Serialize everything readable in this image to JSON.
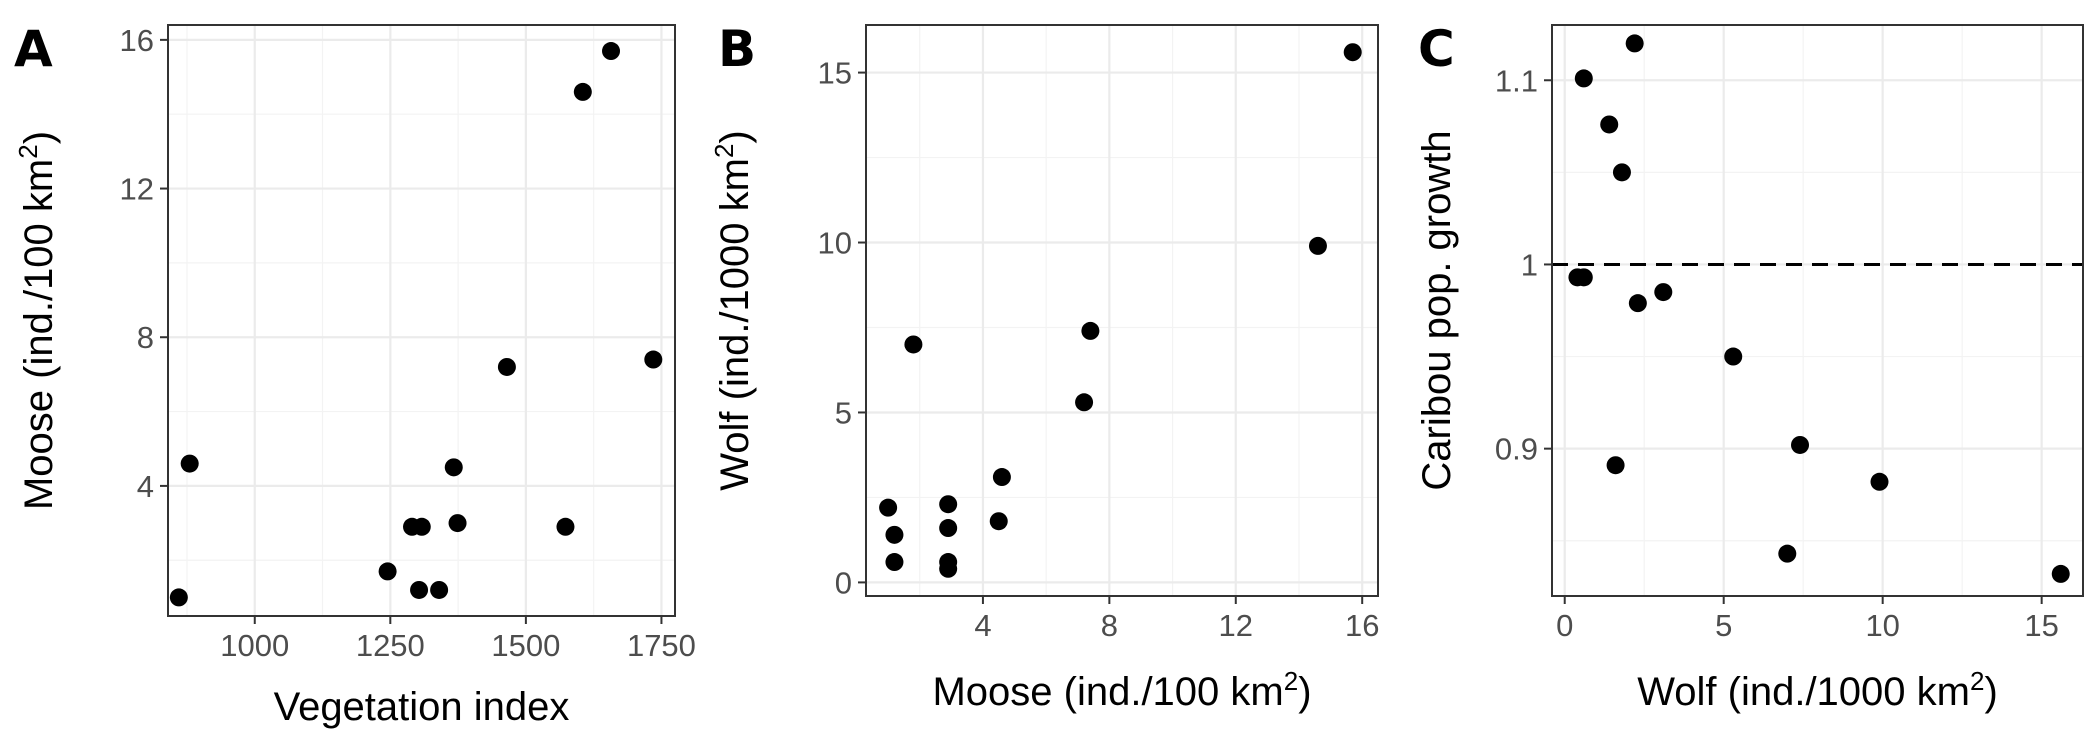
{
  "chart_data": [
    {
      "type": "scatter",
      "panel": "A",
      "xlabel": "Vegetation index",
      "ylabel": "Moose (ind./100 km²)",
      "xlim": [
        840,
        1775
      ],
      "ylim": [
        0.5,
        16.4
      ],
      "xticks": [
        1000,
        1250,
        1500,
        1750
      ],
      "yticks": [
        4,
        8,
        12,
        16
      ],
      "grid": true,
      "points": [
        {
          "x": 860,
          "y": 1.0
        },
        {
          "x": 880,
          "y": 4.6
        },
        {
          "x": 1245,
          "y": 1.7
        },
        {
          "x": 1290,
          "y": 2.9
        },
        {
          "x": 1303,
          "y": 1.2
        },
        {
          "x": 1308,
          "y": 2.9
        },
        {
          "x": 1340,
          "y": 1.2
        },
        {
          "x": 1367,
          "y": 4.5
        },
        {
          "x": 1374,
          "y": 3.0
        },
        {
          "x": 1465,
          "y": 7.2
        },
        {
          "x": 1573,
          "y": 2.9
        },
        {
          "x": 1605,
          "y": 14.6
        },
        {
          "x": 1657,
          "y": 15.7
        },
        {
          "x": 1735,
          "y": 7.4
        }
      ]
    },
    {
      "type": "scatter",
      "panel": "B",
      "xlabel": "Moose (ind./100 km²)",
      "ylabel": "Wolf (ind./1000 km²)",
      "xlim": [
        0.3,
        16.5
      ],
      "ylim": [
        -0.4,
        16.4
      ],
      "xticks": [
        4,
        8,
        12,
        16
      ],
      "yticks": [
        0,
        5,
        10,
        15
      ],
      "grid": true,
      "points": [
        {
          "x": 1.0,
          "y": 2.2
        },
        {
          "x": 1.2,
          "y": 1.4
        },
        {
          "x": 1.2,
          "y": 0.6
        },
        {
          "x": 1.8,
          "y": 7.0
        },
        {
          "x": 2.9,
          "y": 2.3
        },
        {
          "x": 2.9,
          "y": 1.6
        },
        {
          "x": 2.9,
          "y": 0.6
        },
        {
          "x": 2.9,
          "y": 0.4
        },
        {
          "x": 4.5,
          "y": 1.8
        },
        {
          "x": 4.6,
          "y": 3.1
        },
        {
          "x": 7.2,
          "y": 5.3
        },
        {
          "x": 7.4,
          "y": 7.4
        },
        {
          "x": 14.6,
          "y": 9.9
        },
        {
          "x": 15.7,
          "y": 15.6
        }
      ]
    },
    {
      "type": "scatter",
      "panel": "C",
      "xlabel": "Wolf (ind./1000 km²)",
      "ylabel": "Caribou pop. growth",
      "xlim": [
        -0.4,
        16.3
      ],
      "ylim": [
        0.82,
        1.13
      ],
      "xticks": [
        0,
        5,
        10,
        15
      ],
      "yticks": [
        0.9,
        1.0,
        1.1
      ],
      "grid": true,
      "reference_line": {
        "y": 1.0,
        "style": "dashed"
      },
      "points": [
        {
          "x": 0.4,
          "y": 0.993
        },
        {
          "x": 0.6,
          "y": 0.993
        },
        {
          "x": 0.6,
          "y": 1.101
        },
        {
          "x": 1.4,
          "y": 1.076
        },
        {
          "x": 1.6,
          "y": 0.891
        },
        {
          "x": 1.8,
          "y": 1.05
        },
        {
          "x": 2.2,
          "y": 1.12
        },
        {
          "x": 2.3,
          "y": 0.979
        },
        {
          "x": 3.1,
          "y": 0.985
        },
        {
          "x": 5.3,
          "y": 0.95
        },
        {
          "x": 7.0,
          "y": 0.843
        },
        {
          "x": 7.4,
          "y": 0.902
        },
        {
          "x": 9.9,
          "y": 0.882
        },
        {
          "x": 15.6,
          "y": 0.832
        }
      ]
    }
  ]
}
